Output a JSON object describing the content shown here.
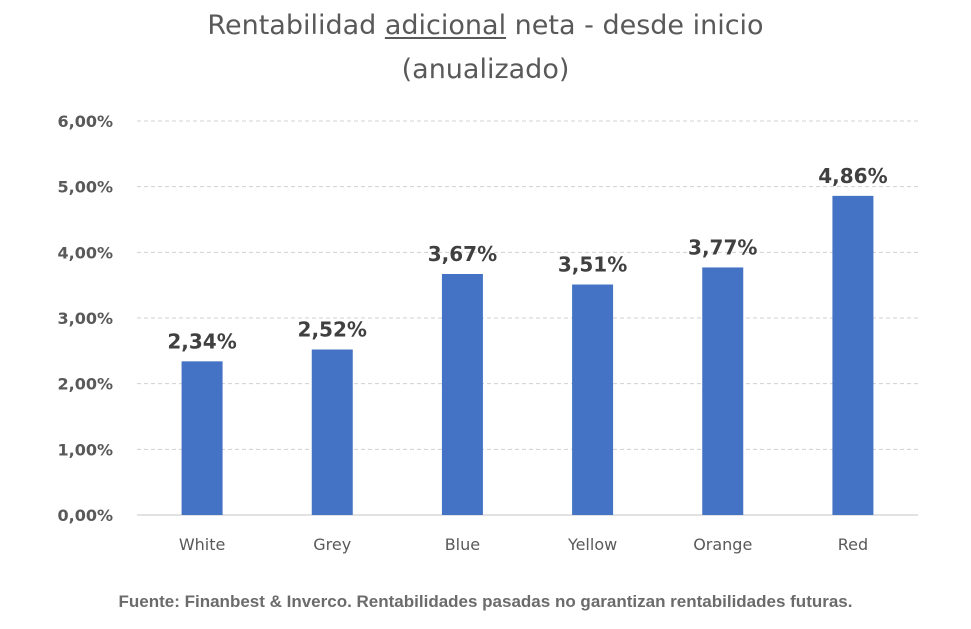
{
  "chart_data": {
    "type": "bar",
    "title_parts": [
      "Rentabilidad ",
      "adicional",
      " neta - desde inicio"
    ],
    "title_line2": "(anualizado)",
    "categories": [
      "White",
      "Grey",
      "Blue",
      "Yellow",
      "Orange",
      "Red"
    ],
    "values": [
      2.34,
      2.52,
      3.67,
      3.51,
      3.77,
      4.86
    ],
    "data_labels": [
      "2,34%",
      "2,52%",
      "3,67%",
      "3,51%",
      "3,77%",
      "4,86%"
    ],
    "yticks": [
      0,
      1,
      2,
      3,
      4,
      5,
      6
    ],
    "ytick_labels": [
      "0,00%",
      "1,00%",
      "2,00%",
      "3,00%",
      "4,00%",
      "5,00%",
      "6,00%"
    ],
    "ylim": [
      0,
      6
    ],
    "grid": true,
    "bar_color": "#4472C4",
    "xlabel": "",
    "ylabel": ""
  },
  "footer": "Fuente: Finanbest & Inverco. Rentabilidades pasadas no garantizan rentabilidades futuras."
}
